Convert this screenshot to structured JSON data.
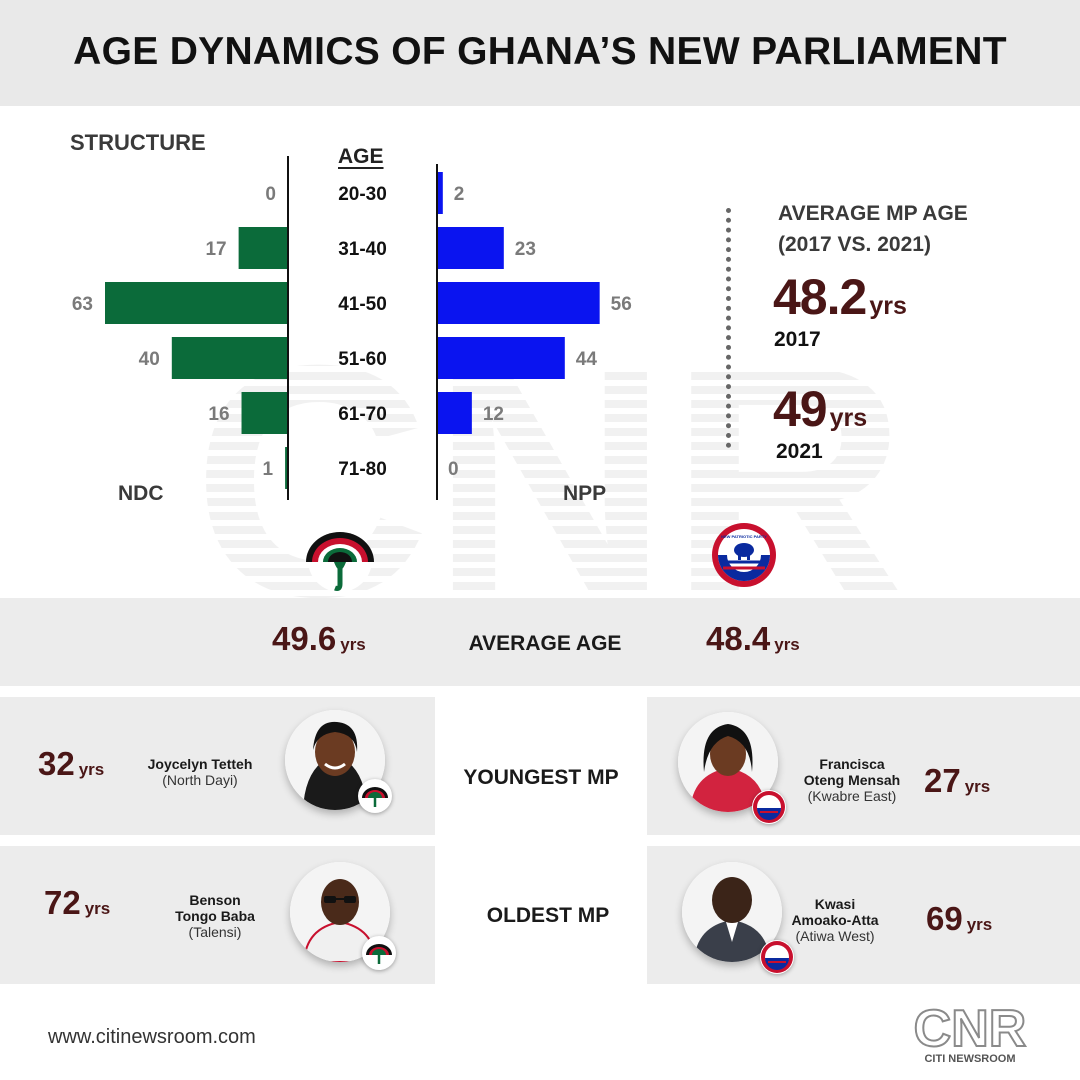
{
  "title": "AGE DYNAMICS OF GHANA’S  NEW PARLIAMENT",
  "structure_label": "STRUCTURE",
  "age_label": "AGE",
  "chart_data": {
    "type": "bar",
    "subtype": "population-pyramid",
    "title": "STRUCTURE",
    "categories": [
      "20-30",
      "31-40",
      "41-50",
      "51-60",
      "61-70",
      "71-80"
    ],
    "series": [
      {
        "name": "NDC",
        "values": [
          0,
          17,
          63,
          40,
          16,
          1
        ],
        "color": "#0b6b3a"
      },
      {
        "name": "NPP",
        "values": [
          2,
          23,
          56,
          44,
          12,
          0
        ],
        "color": "#0a14f0"
      }
    ],
    "xlabel": "AGE",
    "ylabel": "",
    "xlim": [
      0,
      63
    ]
  },
  "average_mp_age": {
    "title_line1": "AVERAGE MP AGE",
    "title_line2": "(2017 VS. 2021)",
    "values": [
      {
        "value": "48.2",
        "unit": "yrs",
        "year": "2017"
      },
      {
        "value": "49",
        "unit": "yrs",
        "year": "2021"
      }
    ]
  },
  "rows": {
    "average_age": {
      "label": "AVERAGE AGE",
      "ndc": {
        "value": "49.6",
        "unit": "yrs"
      },
      "npp": {
        "value": "48.4",
        "unit": "yrs"
      }
    },
    "youngest": {
      "label": "YOUNGEST MP",
      "ndc": {
        "value": "32",
        "unit": "yrs",
        "name_line1": "Joycelyn Tetteh",
        "name_line2": "",
        "constituency": "(North Dayi)"
      },
      "npp": {
        "value": "27",
        "unit": "yrs",
        "name_line1": "Francisca",
        "name_line2": "Oteng Mensah",
        "constituency": "(Kwabre East)"
      }
    },
    "oldest": {
      "label": "OLDEST MP",
      "ndc": {
        "value": "72",
        "unit": "yrs",
        "name_line1": "Benson",
        "name_line2": "Tongo Baba",
        "constituency": "(Talensi)"
      },
      "npp": {
        "value": "69",
        "unit": "yrs",
        "name_line1": "Kwasi",
        "name_line2": "Amoako-Atta",
        "constituency": "(Atiwa West)"
      }
    }
  },
  "footer": {
    "url": "www.citinewsroom.com",
    "logo_text": "CNR",
    "logo_subtext": "CITI NEWSROOM"
  },
  "npp_logo_text": "NEW PATRIOTIC PARTY",
  "colors": {
    "ndc_green": "#0b6b3a",
    "npp_blue": "#0a14f0",
    "value_maroon": "#4a1616",
    "panel_grey": "#ececec"
  }
}
